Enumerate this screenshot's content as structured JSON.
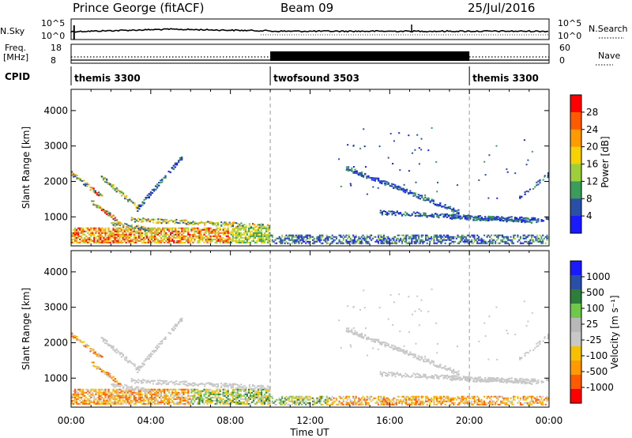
{
  "header": {
    "station": "Prince George (fitACF)",
    "beam": "Beam 09",
    "date": "25/Jul/2016"
  },
  "side_labels": {
    "nsky_label": "N.Sky",
    "nsky_top": "10^5",
    "nsky_bottom": "10^0",
    "freq_label_1": "Freq.",
    "freq_label_2": "[MHz]",
    "freq_top": "18",
    "freq_bottom": "8",
    "cpid_label": "CPID",
    "nsearch_label": "N.Search",
    "nsearch_top": "10^5",
    "nsearch_bottom": "10^0",
    "nave_label": "Nave",
    "nave_top": "60",
    "nave_bottom": "0"
  },
  "cpid_segments": [
    {
      "label": "themis 3300",
      "start_h": 0,
      "end_h": 10
    },
    {
      "label": "twofsound 3503",
      "start_h": 10,
      "end_h": 20
    },
    {
      "label": "themis 3300",
      "start_h": 20,
      "end_h": 24
    }
  ],
  "colors": {
    "power_scale": [
      "#1a1aff",
      "#2a4fa8",
      "#3a9e5a",
      "#9ccf3a",
      "#f5d200",
      "#ff9a00",
      "#ff5a00",
      "#ff0000"
    ],
    "velocity_scale": [
      "#ff0000",
      "#ff5a00",
      "#ff9a00",
      "#f5c000",
      "#c8c8c8",
      "#b8b8b8",
      "#6fc84a",
      "#2e7d3a",
      "#2a4fa8",
      "#1a1aff"
    ],
    "ground_scatter": "#c8c8c8"
  },
  "chart_data": [
    {
      "type": "heatmap",
      "name": "power",
      "ylabel": "Slant Range [km]",
      "colorbar_label": "Power [dB]",
      "colorbar_ticks": [
        "4",
        "8",
        "12",
        "16",
        "20",
        "24",
        "28"
      ],
      "xlim": [
        0,
        24
      ],
      "ylim": [
        180,
        4600
      ],
      "yticks": [
        "1000",
        "2000",
        "3000",
        "4000"
      ]
    },
    {
      "type": "heatmap",
      "name": "velocity",
      "ylabel": "Slant Range [km]",
      "colorbar_label": "Velocity [m s⁻¹]",
      "colorbar_ticks": [
        "1000",
        "500",
        "100",
        "25",
        "-25",
        "-100",
        "-500",
        "-1000"
      ],
      "xlim": [
        0,
        24
      ],
      "ylim": [
        180,
        4600
      ],
      "yticks": [
        "1000",
        "2000",
        "3000",
        "4000"
      ],
      "xlabel": "Time UT",
      "xticks": [
        "00:00",
        "04:00",
        "08:00",
        "12:00",
        "16:00",
        "20:00",
        "00:00"
      ]
    }
  ]
}
